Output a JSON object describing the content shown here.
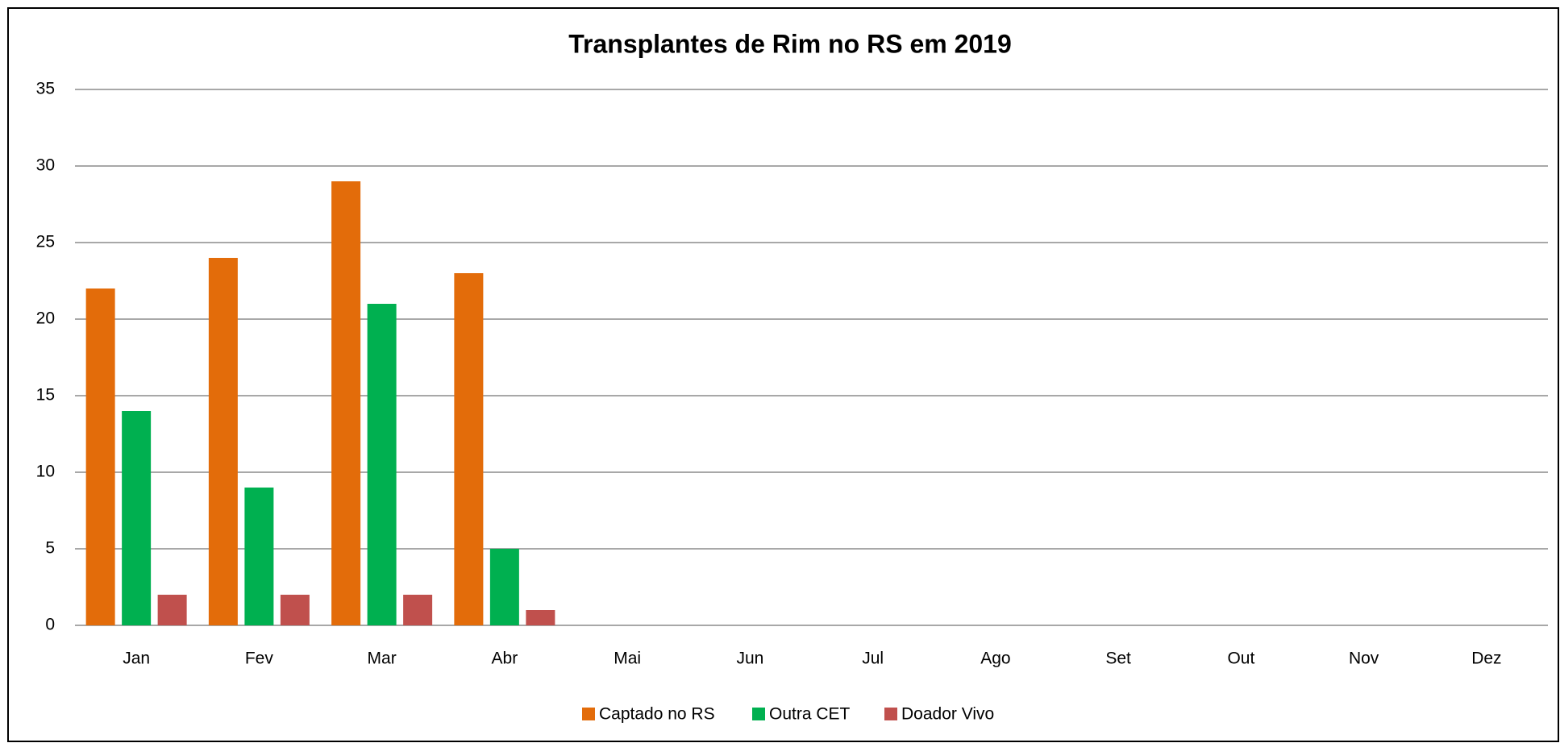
{
  "chart_data": {
    "type": "bar",
    "title": "Transplantes de Rim no RS em 2019",
    "categories": [
      "Jan",
      "Fev",
      "Mar",
      "Abr",
      "Mai",
      "Jun",
      "Jul",
      "Ago",
      "Set",
      "Out",
      "Nov",
      "Dez"
    ],
    "series": [
      {
        "name": "Captado no RS",
        "color": "#e36c0a",
        "values": [
          22,
          24,
          29,
          23,
          null,
          null,
          null,
          null,
          null,
          null,
          null,
          null
        ]
      },
      {
        "name": "Outra CET",
        "color": "#00b050",
        "values": [
          14,
          9,
          21,
          5,
          null,
          null,
          null,
          null,
          null,
          null,
          null,
          null
        ]
      },
      {
        "name": "Doador Vivo",
        "color": "#c0504d",
        "values": [
          2,
          2,
          2,
          1,
          null,
          null,
          null,
          null,
          null,
          null,
          null,
          null
        ]
      }
    ],
    "ylim": [
      0,
      35
    ],
    "yticks": [
      0,
      5,
      10,
      15,
      20,
      25,
      30,
      35
    ],
    "grid": true,
    "legend": "bottom"
  }
}
